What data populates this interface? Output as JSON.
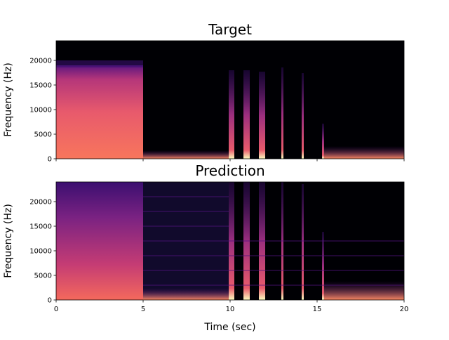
{
  "chart_data": [
    {
      "type": "spectrogram",
      "title": "Target",
      "y_label": "Frequency (Hz)",
      "xlim": [
        0,
        20
      ],
      "ylim": [
        0,
        24000
      ],
      "yticks": [
        0,
        5000,
        10000,
        15000,
        20000
      ]
    },
    {
      "type": "spectrogram",
      "title": "Prediction",
      "y_label": "Frequency (Hz)",
      "x_label": "Time (sec)",
      "xlim": [
        0,
        20
      ],
      "xticks": [
        0,
        5,
        10,
        15,
        20
      ],
      "ylim": [
        0,
        24000
      ],
      "yticks": [
        0,
        5000,
        10000,
        15000,
        20000
      ]
    }
  ]
}
